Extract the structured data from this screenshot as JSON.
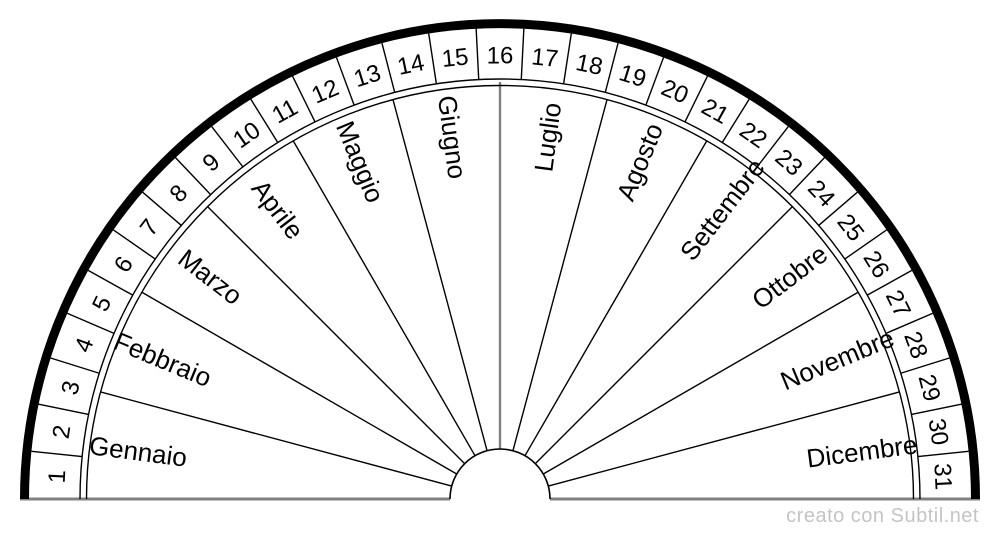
{
  "footer": {
    "credit": "creato con Subtil.net",
    "credit_color": "#c4c4c4"
  },
  "chart_data": {
    "type": "radial-dial",
    "title": "",
    "description": "Semicircular pendulum dial: outer ring of day numbers 1-31, inner ring of 12 Italian month sectors",
    "outer_ring": {
      "name": "days",
      "values": [
        1,
        2,
        3,
        4,
        5,
        6,
        7,
        8,
        9,
        10,
        11,
        12,
        13,
        14,
        15,
        16,
        17,
        18,
        19,
        20,
        21,
        22,
        23,
        24,
        25,
        26,
        27,
        28,
        29,
        30,
        31
      ]
    },
    "sectors": {
      "name": "months",
      "values": [
        "Gennaio",
        "Febbraio",
        "Marzo",
        "Aprile",
        "Maggio",
        "Giugno",
        "Luglio",
        "Agosto",
        "Settembre",
        "Ottobre",
        "Novembre",
        "Dicembre"
      ]
    },
    "layout_hints": {
      "span_degrees": 180,
      "grid": "radial dividers every sector; double inner arc; thick outer arc"
    },
    "colors": {
      "line": "#000000",
      "text": "#000000",
      "axis_gray": "#808080"
    }
  }
}
